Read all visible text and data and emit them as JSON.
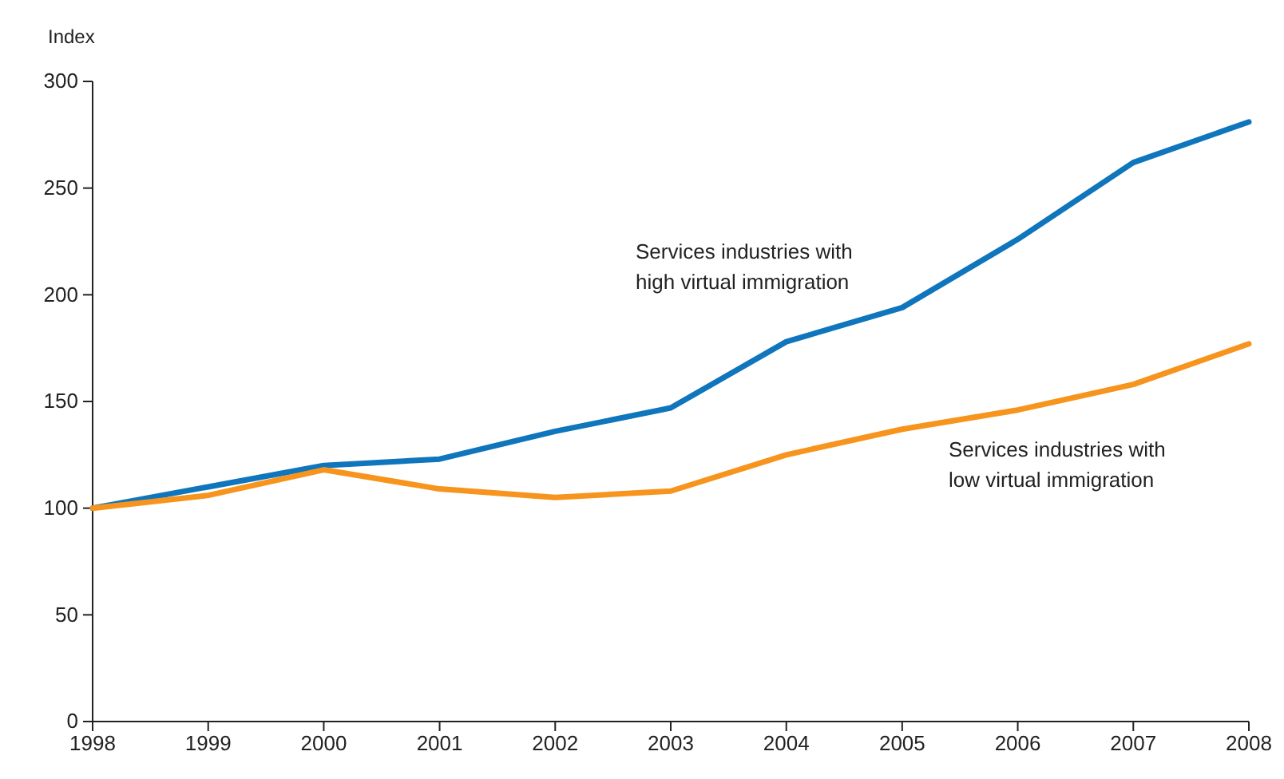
{
  "chart_data": {
    "type": "line",
    "ylabel": "Index",
    "x": [
      "1998",
      "1999",
      "2000",
      "2001",
      "2002",
      "2003",
      "2004",
      "2005",
      "2006",
      "2007",
      "2008"
    ],
    "series": [
      {
        "name": "Services industries with\nhigh virtual immigration",
        "color": "#0f75bc",
        "values": [
          100,
          110,
          120,
          123,
          136,
          147,
          178,
          194,
          226,
          262,
          281
        ]
      },
      {
        "name": "Services industries with\nlow virtual immigration",
        "color": "#f7941d",
        "values": [
          100,
          106,
          118,
          109,
          105,
          108,
          125,
          137,
          146,
          158,
          177
        ]
      }
    ],
    "xlim": [
      "1998",
      "2008"
    ],
    "xticks": [
      "1998",
      "1999",
      "2000",
      "2001",
      "2002",
      "2003",
      "2004",
      "2005",
      "2006",
      "2007",
      "2008"
    ],
    "ylim": [
      0,
      300
    ],
    "yticks": [
      0,
      50,
      100,
      150,
      200,
      250,
      300
    ],
    "grid": false,
    "marker": "none",
    "line_style": "solid"
  }
}
